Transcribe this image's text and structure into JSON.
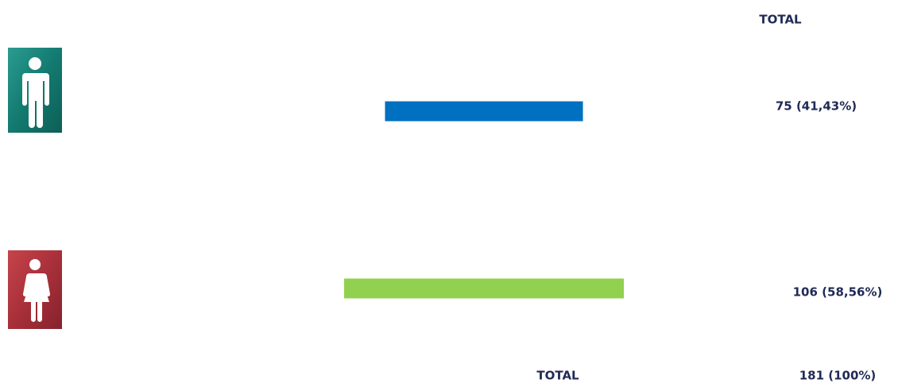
{
  "chart_data": {
    "type": "bar",
    "column_header": "TOTAL",
    "categories": [
      null,
      null
    ],
    "values": [
      75,
      106
    ],
    "value_labels": [
      "75 (41,43%)",
      "106 (58,56%)"
    ],
    "colors": [
      "#0070c0",
      "#92d050"
    ],
    "total_label": "TOTAL",
    "total_value": "181 (100%)"
  }
}
